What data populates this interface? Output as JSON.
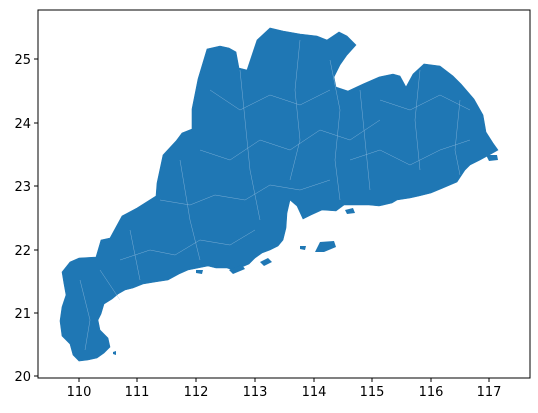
{
  "map": {
    "fill_color": "#1f77b4",
    "boundary_color": "#9fc3e3",
    "x_ticks": [
      "110",
      "111",
      "112",
      "113",
      "114",
      "115",
      "116",
      "117"
    ],
    "y_ticks": [
      "20",
      "21",
      "22",
      "23",
      "24",
      "25"
    ]
  }
}
